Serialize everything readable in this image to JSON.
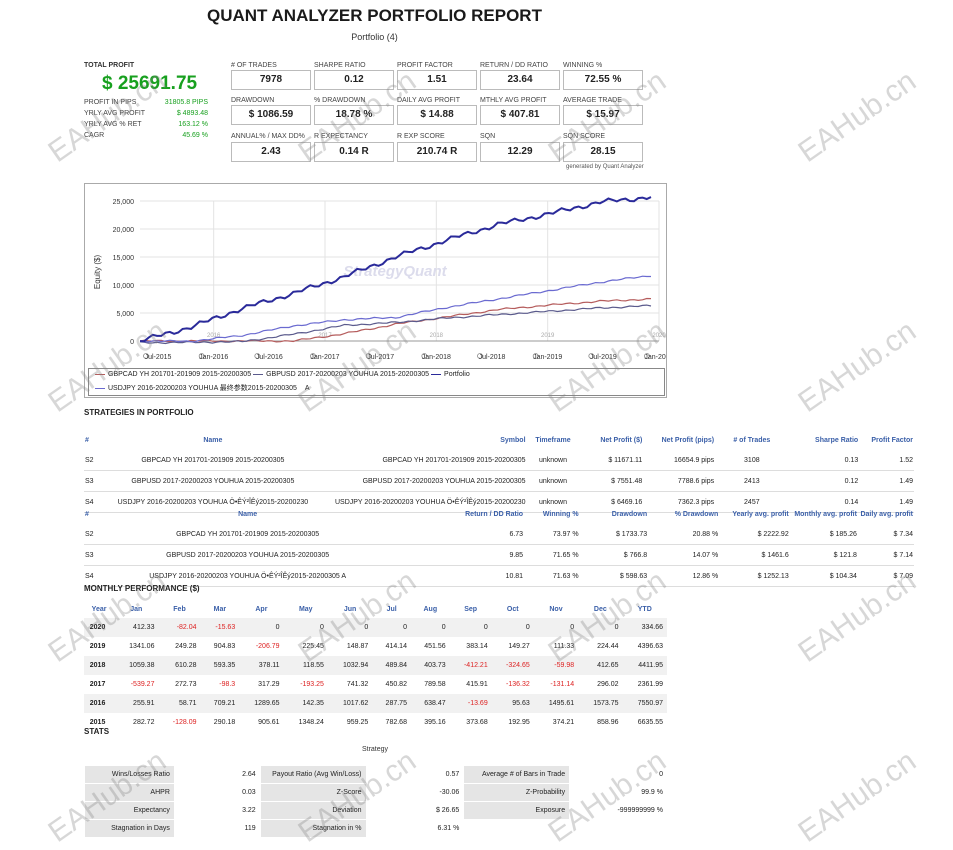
{
  "header": {
    "title": "QUANT ANALYZER PORTFOLIO REPORT",
    "subtitle": "Portfolio (4)"
  },
  "summary": {
    "total_profit_label": "TOTAL PROFIT",
    "total_profit": "$ 25691.75",
    "rows": [
      {
        "label": "PROFIT IN PIPS",
        "value": "31805.8 PIPS"
      },
      {
        "label": "YRLY AVG PROFIT",
        "value": "$ 4893.48"
      },
      {
        "label": "YRLY AVG % RET",
        "value": "163.12 %"
      },
      {
        "label": "CAGR",
        "value": "45.69 %"
      }
    ]
  },
  "stats_grid": [
    {
      "label": "# OF TRADES",
      "value": "7978"
    },
    {
      "label": "SHARPE RATIO",
      "value": "0.12"
    },
    {
      "label": "PROFIT FACTOR",
      "value": "1.51"
    },
    {
      "label": "RETURN / DD RATIO",
      "value": "23.64"
    },
    {
      "label": "WINNING %",
      "value": "72.55 %"
    },
    {
      "label": "DRAWDOWN",
      "value": "$ 1086.59"
    },
    {
      "label": "% DRAWDOWN",
      "value": "18.78 %"
    },
    {
      "label": "DAILY AVG PROFIT",
      "value": "$ 14.88"
    },
    {
      "label": "MTHLY AVG PROFIT",
      "value": "$ 407.81"
    },
    {
      "label": "AVERAGE TRADE",
      "value": "$ 15.97"
    },
    {
      "label": "ANNUAL% / MAX DD%",
      "value": "2.43"
    },
    {
      "label": "R EXPECTANCY",
      "value": "0.14 R"
    },
    {
      "label": "R EXP SCORE",
      "value": "210.74 R"
    },
    {
      "label": "SQN",
      "value": "12.29"
    },
    {
      "label": "SQN SCORE",
      "value": "28.15"
    }
  ],
  "generated_by": "generated by Quant Analyzer",
  "chart_data": {
    "type": "line",
    "ylabel": "Equity ($)",
    "ylim": [
      0,
      25000
    ],
    "yticks": [
      "25,000",
      "20,000",
      "15,000",
      "10,000",
      "5,000",
      "0"
    ],
    "xticks": [
      "Jul-2015",
      "Jan-2016",
      "Jul-2016",
      "Jan-2017",
      "Jul-2017",
      "Jan-2018",
      "Jul-2018",
      "Jan-2019",
      "Jul-2019",
      "Jan-2020"
    ],
    "year_marks": [
      "2016",
      "2017",
      "2018",
      "2019",
      "2020"
    ],
    "watermark": "StrategyQuant",
    "x": [
      "2015-07",
      "2016-01",
      "2016-07",
      "2017-01",
      "2017-07",
      "2018-01",
      "2018-07",
      "2019-01",
      "2019-07",
      "2020-01",
      "2020-03"
    ],
    "series": [
      {
        "name": "GBPCAD YH 201701-201909 2015-20200305",
        "color": "#b55c5c",
        "values": [
          0,
          0,
          0,
          0,
          1300,
          3000,
          4300,
          5600,
          6400,
          7100,
          7500
        ]
      },
      {
        "name": "GBPUSD 2017-20200203 YOUHUA 2015-20200305",
        "color": "#5a5a8c",
        "values": [
          -300,
          -250,
          -100,
          1200,
          2800,
          3300,
          4100,
          4700,
          5300,
          5900,
          6300
        ]
      },
      {
        "name": "USDJPY 2016-20200203 YOUHUA 最终参数2015-20200305",
        "color": "#6a6ad0",
        "values": [
          0,
          -50,
          1000,
          2700,
          3800,
          4200,
          6000,
          7500,
          9000,
          10500,
          11700
        ]
      },
      {
        "name": "Portfolio",
        "color": "#2a2a9a",
        "values": [
          0,
          2500,
          5800,
          8500,
          11500,
          15000,
          18000,
          20800,
          22700,
          24800,
          25700
        ]
      }
    ],
    "legend_line2_suffix": "A"
  },
  "strategies_section": "STRATEGIES IN PORTFOLIO",
  "strategies_table1": {
    "headers": [
      "#",
      "Name",
      "Symbol",
      "Timeframe",
      "Net Profit ($)",
      "Net Profit (pips)",
      "# of Trades",
      "Sharpe Ratio",
      "Profit Factor"
    ],
    "rows": [
      [
        "S2",
        "GBPCAD YH 201701-201909 2015-20200305",
        "GBPCAD YH 201701-201909 2015-20200305",
        "unknown",
        "$ 11671.11",
        "16654.9 pips",
        "3108",
        "0.13",
        "1.52"
      ],
      [
        "S3",
        "GBPUSD 2017-20200203 YOUHUA 2015-20200305",
        "GBPUSD 2017-20200203 YOUHUA 2015-20200305",
        "unknown",
        "$ 7551.48",
        "7788.6 pips",
        "2413",
        "0.12",
        "1.49"
      ],
      [
        "S4",
        "USDJPY 2016-20200203 YOUHUA Ö•ÊÝ²ÎÊý2015-20200230",
        "USDJPY 2016-20200203 YOUHUA Ö•ÊÝ²ÎÊý2015-20200230",
        "unknown",
        "$ 6469.16",
        "7362.3 pips",
        "2457",
        "0.14",
        "1.49"
      ]
    ]
  },
  "strategies_table2": {
    "headers": [
      "#",
      "Name",
      "Return / DD Ratio",
      "Winning %",
      "Drawdown",
      "% Drawdown",
      "Yearly avg. profit",
      "Monthly avg. profit",
      "Daily avg. profit"
    ],
    "rows": [
      [
        "S2",
        "GBPCAD YH 201701-201909 2015-20200305",
        "6.73",
        "73.97 %",
        "$ 1733.73",
        "20.88 %",
        "$ 2222.92",
        "$ 185.26",
        "$ 7.34"
      ],
      [
        "S3",
        "GBPUSD 2017-20200203 YOUHUA 2015-20200305",
        "9.85",
        "71.65 %",
        "$ 766.8",
        "14.07 %",
        "$ 1461.6",
        "$ 121.8",
        "$ 7.14"
      ],
      [
        "S4",
        "USDJPY 2016-20200203 YOUHUA Ö•ÊÝ²ÎÊý2015-20200305 A",
        "10.81",
        "71.63 %",
        "$ 598.63",
        "12.86 %",
        "$ 1252.13",
        "$ 104.34",
        "$ 7.09"
      ]
    ]
  },
  "monthly_section": "MONTHLY PERFORMANCE ($)",
  "monthly": {
    "headers": [
      "Year",
      "Jan",
      "Feb",
      "Mar",
      "Apr",
      "May",
      "Jun",
      "Jul",
      "Aug",
      "Sep",
      "Oct",
      "Nov",
      "Dec",
      "YTD"
    ],
    "rows": [
      [
        "2020",
        "412.33",
        "-82.04",
        "-15.63",
        "0",
        "0",
        "0",
        "0",
        "0",
        "0",
        "0",
        "0",
        "0",
        "334.66"
      ],
      [
        "2019",
        "1341.06",
        "249.28",
        "904.83",
        "-206.79",
        "225.45",
        "148.87",
        "414.14",
        "451.56",
        "383.14",
        "149.27",
        "111.33",
        "224.44",
        "4396.63"
      ],
      [
        "2018",
        "1059.38",
        "610.28",
        "593.35",
        "378.11",
        "118.55",
        "1032.94",
        "489.84",
        "403.73",
        "-412.21",
        "-324.65",
        "-59.98",
        "412.65",
        "4411.95"
      ],
      [
        "2017",
        "-539.27",
        "272.73",
        "-98.3",
        "317.29",
        "-193.25",
        "741.32",
        "450.82",
        "789.58",
        "415.91",
        "-136.32",
        "-131.14",
        "296.02",
        "2361.99"
      ],
      [
        "2016",
        "255.91",
        "58.71",
        "709.21",
        "1289.65",
        "142.35",
        "1017.62",
        "287.75",
        "638.47",
        "-13.69",
        "95.63",
        "1495.61",
        "1573.75",
        "7550.97"
      ],
      [
        "2015",
        "282.72",
        "-128.09",
        "290.18",
        "905.61",
        "1348.24",
        "959.25",
        "782.68",
        "395.16",
        "373.68",
        "192.95",
        "374.21",
        "858.96",
        "6635.55"
      ]
    ]
  },
  "stats_section": "STATS",
  "stats_caption": "Strategy",
  "stats_table": [
    [
      "Wins/Losses Ratio",
      "2.64",
      "Payout Ratio (Avg Win/Loss)",
      "0.57",
      "Average # of Bars in Trade",
      "0"
    ],
    [
      "AHPR",
      "0.03",
      "Z-Score",
      "-30.06",
      "Z-Probability",
      "99.9 %"
    ],
    [
      "Expectancy",
      "3.22",
      "Deviation",
      "$ 26.65",
      "Exposure",
      "-999999999 %"
    ],
    [
      "Stagnation in Days",
      "119",
      "Stagnation in %",
      "6.31 %",
      "",
      ""
    ]
  ],
  "watermark_text": "EAHub.cn"
}
